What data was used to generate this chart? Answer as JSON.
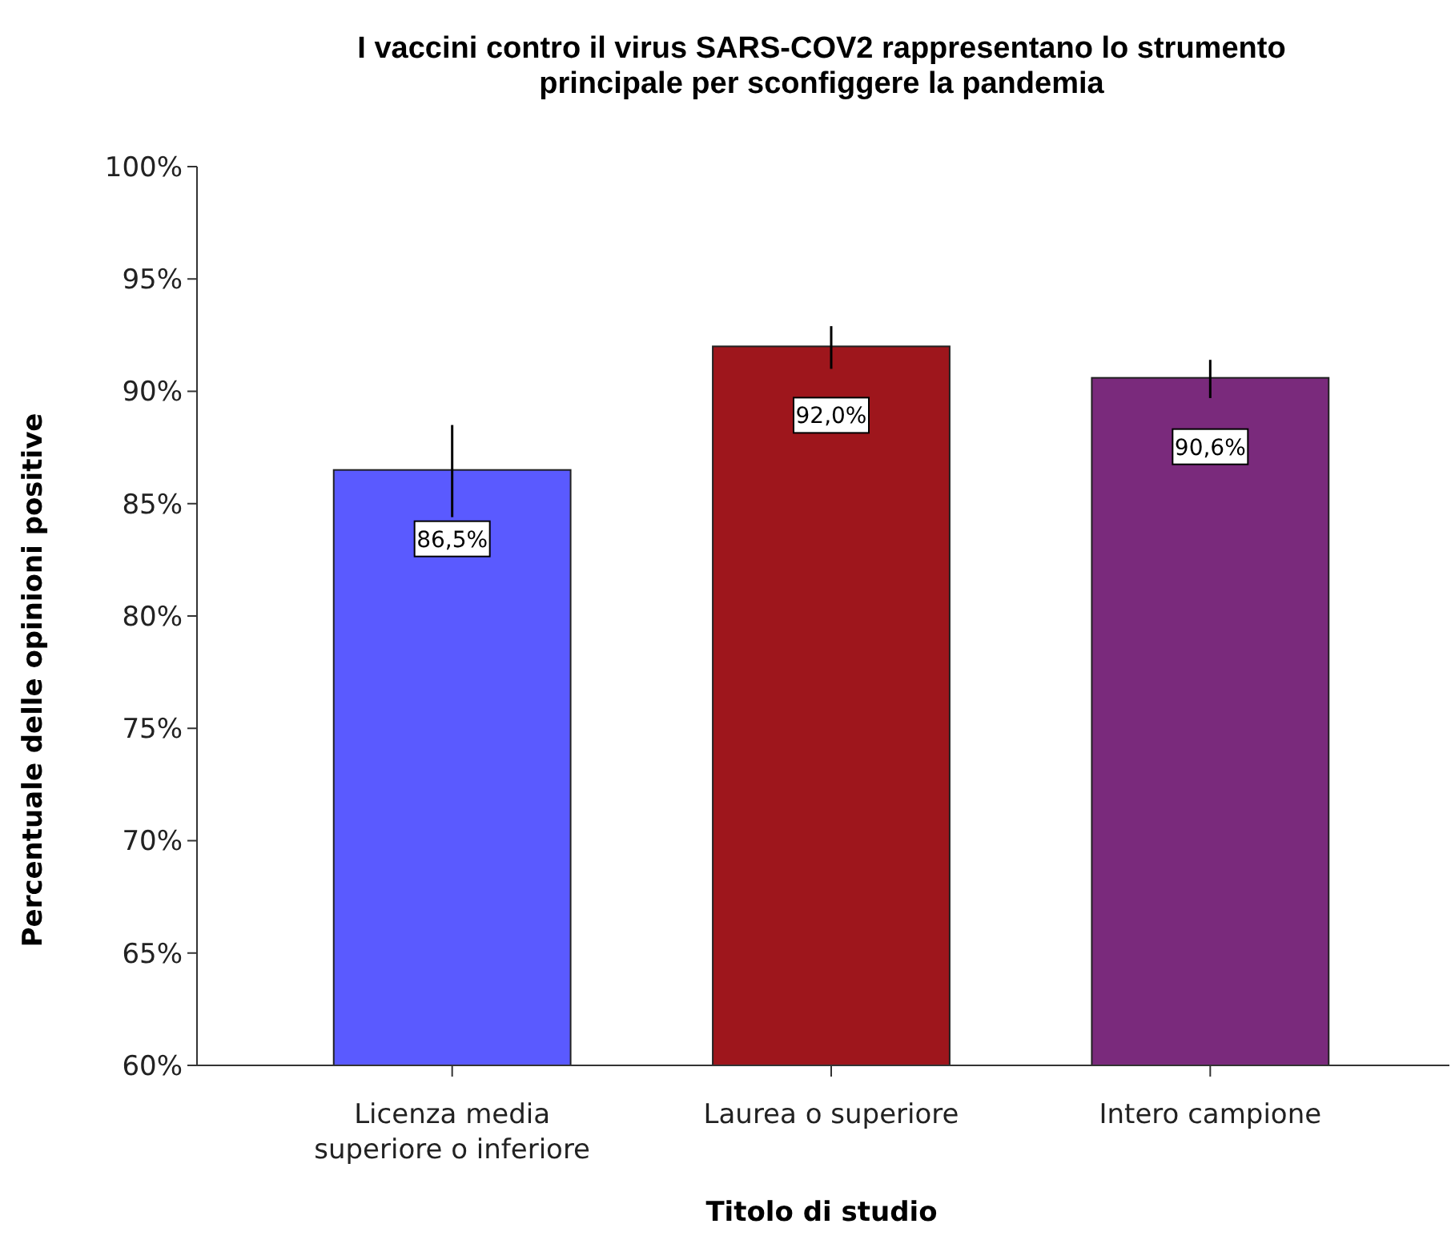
{
  "chart_data": {
    "type": "bar",
    "title": "I vaccini contro il virus SARS-COV2 rappresentano lo strumento principale per sconfiggere la pandemia",
    "xlabel": "Titolo di studio",
    "ylabel": "Percentuale delle opinioni positive",
    "categories": [
      "Licenza media superiore o inferiore",
      "Laurea o superiore",
      "Intero campione"
    ],
    "values": [
      86.5,
      92.0,
      90.6
    ],
    "colors": [
      "#5a5aff",
      "#9e161c",
      "#7a2a7c"
    ],
    "errors": [
      [
        84.4,
        88.5
      ],
      [
        91.0,
        92.9
      ],
      [
        89.7,
        91.4
      ]
    ],
    "value_labels": [
      "86,5%",
      "92,0%",
      "90,6%"
    ],
    "ylim": [
      60,
      100
    ],
    "yticks": [
      {
        "value": 60,
        "label": "60%"
      },
      {
        "value": 65,
        "label": "65%"
      },
      {
        "value": 70,
        "label": "70%"
      },
      {
        "value": 75,
        "label": "75%"
      },
      {
        "value": 80,
        "label": "80%"
      },
      {
        "value": 85,
        "label": "85%"
      },
      {
        "value": 90,
        "label": "90%"
      },
      {
        "value": 95,
        "label": "95%"
      },
      {
        "value": 100,
        "label": "100%"
      }
    ]
  }
}
